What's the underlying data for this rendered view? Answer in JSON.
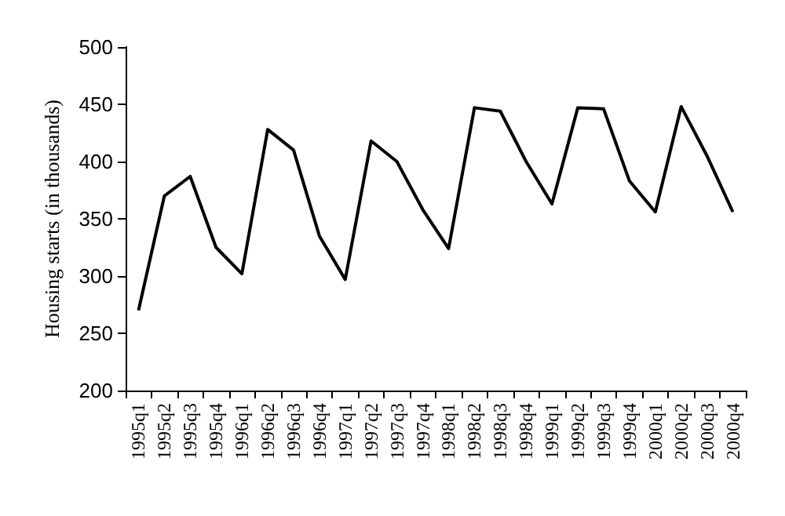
{
  "chart_data": {
    "type": "line",
    "ylabel": "Housing starts (in thousands)",
    "categories": [
      "1995q1",
      "1995q2",
      "1995q3",
      "1995q4",
      "1996q1",
      "1996q2",
      "1996q3",
      "1996q4",
      "1997q1",
      "1997q2",
      "1997q3",
      "1997q4",
      "1998q1",
      "1998q2",
      "1998q3",
      "1998q4",
      "1999q1",
      "1999q2",
      "1999q3",
      "1999q4",
      "2000q1",
      "2000q2",
      "2000q3",
      "2000q4"
    ],
    "series": [
      {
        "color": "#000000",
        "values": [
          270,
          370,
          387,
          325,
          302,
          428,
          410,
          335,
          297,
          418,
          400,
          358,
          324,
          447,
          444,
          400,
          363,
          447,
          446,
          383,
          356,
          448,
          405,
          356
        ]
      }
    ],
    "ylim": [
      200,
      500
    ],
    "yticks": [
      200,
      250,
      300,
      350,
      400,
      450,
      500
    ],
    "grid": false,
    "marker": "none",
    "line_style": "solid"
  }
}
